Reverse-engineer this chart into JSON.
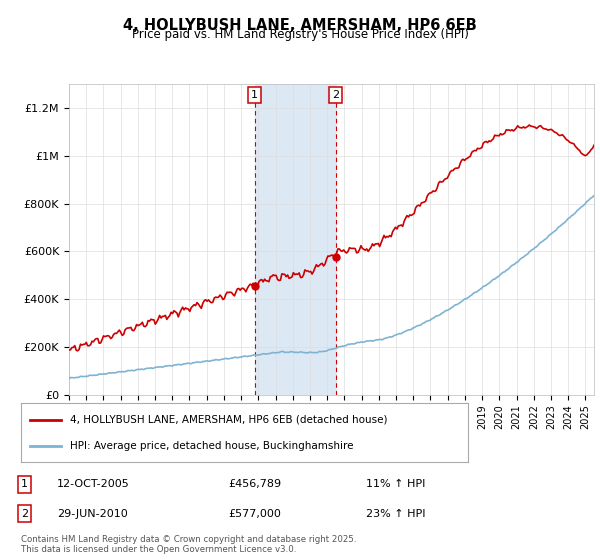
{
  "title": "4, HOLLYBUSH LANE, AMERSHAM, HP6 6EB",
  "subtitle": "Price paid vs. HM Land Registry's House Price Index (HPI)",
  "sale1_date_label": "12-OCT-2005",
  "sale1_price": 456789,
  "sale1_price_label": "£456,789",
  "sale1_pct": "11% ↑ HPI",
  "sale2_date_label": "29-JUN-2010",
  "sale2_price": 577000,
  "sale2_price_label": "£577,000",
  "sale2_pct": "23% ↑ HPI",
  "legend_line1": "4, HOLLYBUSH LANE, AMERSHAM, HP6 6EB (detached house)",
  "legend_line2": "HPI: Average price, detached house, Buckinghamshire",
  "copyright": "Contains HM Land Registry data © Crown copyright and database right 2025.\nThis data is licensed under the Open Government Licence v3.0.",
  "price_line_color": "#cc0000",
  "hpi_line_color": "#7fb3d3",
  "shade_color": "#dce9f5",
  "marker_color": "#cc0000",
  "box_color": "#cc0000",
  "ylim_max": 1300000,
  "ylabel_ticks": [
    0,
    200000,
    400000,
    600000,
    800000,
    1000000,
    1200000
  ],
  "ylabel_labels": [
    "£0",
    "£200K",
    "£400K",
    "£600K",
    "£800K",
    "£1M",
    "£1.2M"
  ],
  "bg_color": "#ffffff",
  "grid_color": "#dddddd",
  "t_s1": 2005.786,
  "t_s2": 2010.494
}
